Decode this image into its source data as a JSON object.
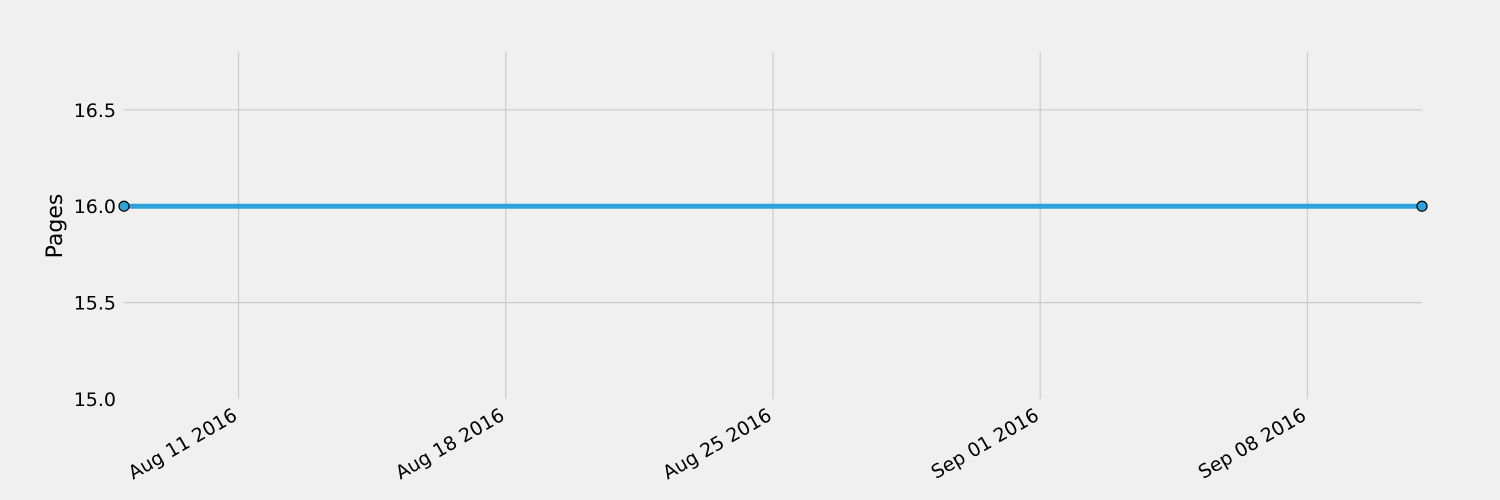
{
  "chart_data": {
    "type": "line",
    "title": "",
    "xlabel": "",
    "ylabel": "Pages",
    "x_type": "date",
    "xlim": [
      "2016-08-08",
      "2016-09-11"
    ],
    "ylim": [
      15.0,
      16.8
    ],
    "x_ticks": [
      {
        "date": "2016-08-11",
        "label": "Aug 11 2016"
      },
      {
        "date": "2016-08-18",
        "label": "Aug 18 2016"
      },
      {
        "date": "2016-08-25",
        "label": "Aug 25 2016"
      },
      {
        "date": "2016-09-01",
        "label": "Sep 01 2016"
      },
      {
        "date": "2016-09-08",
        "label": "Sep 08 2016"
      }
    ],
    "y_ticks": [
      {
        "value": 15.0,
        "label": "15.0"
      },
      {
        "value": 15.5,
        "label": "15.5"
      },
      {
        "value": 16.0,
        "label": "16.0"
      },
      {
        "value": 16.5,
        "label": "16.5"
      }
    ],
    "grid": true,
    "series": [
      {
        "color": "#30a2da",
        "marker_color": "#30a2da",
        "marker_edge_color": "#000000",
        "points": [
          {
            "x": "2016-08-08",
            "y": 16.0
          },
          {
            "x": "2016-09-11",
            "y": 16.0
          }
        ]
      }
    ]
  }
}
